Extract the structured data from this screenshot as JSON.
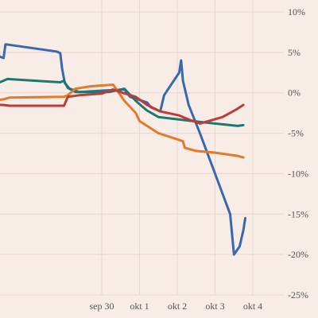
{
  "chart_data": {
    "type": "line",
    "x_labels": [
      "sep 30",
      "okt 1",
      "okt 2",
      "okt 3",
      "okt 4"
    ],
    "y_ticks": [
      "10%",
      "5%",
      "0%",
      "-5%",
      "-10%",
      "-15%",
      "-20%",
      "-25%"
    ],
    "ylim": [
      -25,
      10
    ],
    "grid": true,
    "series": [
      {
        "color": "#3a68b0",
        "points": [
          [
            -2.75,
            6.5
          ],
          [
            -2.72,
            4.5
          ],
          [
            -2.6,
            4.3
          ],
          [
            -2.55,
            6
          ],
          [
            -1.2,
            5.1
          ],
          [
            -1.1,
            4.9
          ],
          [
            -1.05,
            3
          ],
          [
            -0.98,
            1.2
          ],
          [
            -0.85,
            0.5
          ],
          [
            -0.6,
            0.1
          ],
          [
            0.1,
            0.3
          ],
          [
            0.6,
            0.4
          ],
          [
            0.75,
            -0.5
          ],
          [
            1.2,
            -1.2
          ],
          [
            1.3,
            -1.8
          ],
          [
            1.55,
            -2.3
          ],
          [
            1.65,
            -0.3
          ],
          [
            2.05,
            2.5
          ],
          [
            2.1,
            4
          ],
          [
            2.15,
            1.5
          ],
          [
            2.3,
            -1.5
          ],
          [
            2.6,
            -5
          ],
          [
            3,
            -10
          ],
          [
            3.4,
            -15
          ],
          [
            3.5,
            -20
          ],
          [
            3.65,
            -19
          ],
          [
            3.75,
            -17
          ],
          [
            3.8,
            -15.5
          ]
        ]
      },
      {
        "color": "#1e7872",
        "points": [
          [
            -2.75,
            1.2
          ],
          [
            -2.6,
            1.5
          ],
          [
            -2.5,
            1.7
          ],
          [
            -1.1,
            1.3
          ],
          [
            -1,
            1.5
          ],
          [
            -0.9,
            0.6
          ],
          [
            -0.7,
            0.1
          ],
          [
            0.2,
            0.1
          ],
          [
            0.6,
            0.5
          ],
          [
            0.9,
            -1
          ],
          [
            1.2,
            -2.2
          ],
          [
            1.5,
            -3
          ],
          [
            2.4,
            -3.5
          ],
          [
            3,
            -3.8
          ],
          [
            3.6,
            -4.1
          ],
          [
            3.75,
            -4
          ]
        ]
      },
      {
        "color": "#e07a2c",
        "points": [
          [
            -2.75,
            -0.9
          ],
          [
            -2.6,
            -0.8
          ],
          [
            -2.45,
            -0.6
          ],
          [
            -1,
            -0.5
          ],
          [
            -0.9,
            -0.3
          ],
          [
            -0.7,
            0.5
          ],
          [
            -0.3,
            0.8
          ],
          [
            0.3,
            1
          ],
          [
            0.6,
            -1
          ],
          [
            0.9,
            -2.5
          ],
          [
            1,
            -3.5
          ],
          [
            1.5,
            -5
          ],
          [
            1.9,
            -5.6
          ],
          [
            2.15,
            -6
          ],
          [
            2.2,
            -6.8
          ],
          [
            2.5,
            -7.2
          ],
          [
            3,
            -7.4
          ],
          [
            3.6,
            -7.8
          ],
          [
            3.75,
            -8
          ]
        ]
      },
      {
        "color": "#bf3b36",
        "points": [
          [
            -2.75,
            -1.5
          ],
          [
            -2.6,
            -1.5
          ],
          [
            -2.45,
            -1.6
          ],
          [
            -1,
            -1.6
          ],
          [
            -0.9,
            -0.5
          ],
          [
            -0.6,
            -0.3
          ],
          [
            0,
            -0.1
          ],
          [
            0.3,
            0.4
          ],
          [
            0.55,
            0
          ],
          [
            0.9,
            -0.5
          ],
          [
            1.2,
            -1.5
          ],
          [
            1.55,
            -2.3
          ],
          [
            2.05,
            -2.8
          ],
          [
            2.3,
            -3.3
          ],
          [
            2.6,
            -3.8
          ],
          [
            3.2,
            -3
          ],
          [
            3.55,
            -2.1
          ],
          [
            3.75,
            -1.5
          ]
        ]
      }
    ]
  }
}
